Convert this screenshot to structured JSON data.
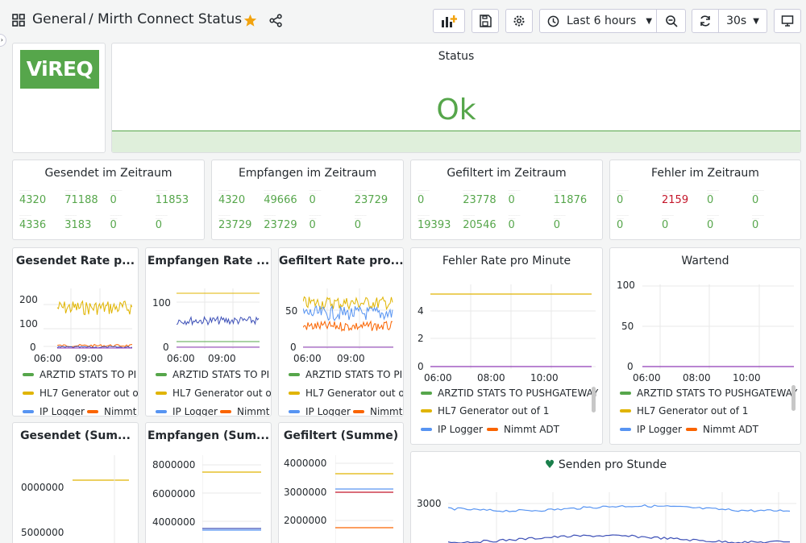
{
  "header": {
    "folder": "General",
    "separator": "/",
    "title": "Mirth Connect Status",
    "timerange": "Last 6 hours",
    "refresh": "30s"
  },
  "logo": {
    "text": "ViREQ"
  },
  "status_panel": {
    "title": "Status",
    "value": "Ok"
  },
  "stat_panels": [
    {
      "title": "Gesendet im Zeitraum",
      "cells": [
        "4320",
        "71188",
        "0",
        "11853",
        "4336",
        "3183",
        "0",
        "0"
      ],
      "red": []
    },
    {
      "title": "Empfangen im Zeitraum",
      "cells": [
        "4320",
        "49666",
        "0",
        "23729",
        "23729",
        "23729",
        "0",
        "0"
      ],
      "red": []
    },
    {
      "title": "Gefiltert im Zeitraum",
      "cells": [
        "0",
        "23778",
        "0",
        "11876",
        "19393",
        "20546",
        "0",
        "0"
      ],
      "red": []
    },
    {
      "title": "Fehler im Zeitraum",
      "cells": [
        "0",
        "2159",
        "0",
        "0",
        "0",
        "0",
        "0",
        "0"
      ],
      "red": [
        1
      ]
    }
  ],
  "rate_panels": {
    "gesendet": {
      "title": "Gesendet Rate p...",
      "yticks": [
        "200",
        "100",
        "0"
      ],
      "xticks": [
        "06:00",
        "09:00"
      ]
    },
    "empfangen": {
      "title": "Empfangen Rate ...",
      "yticks": [
        "100",
        "0"
      ],
      "xticks": [
        "06:00",
        "09:00"
      ]
    },
    "gefiltert": {
      "title": "Gefiltert Rate pro...",
      "yticks": [
        "50",
        "0"
      ],
      "xticks": [
        "06:00",
        "09:00"
      ]
    },
    "fehler": {
      "title": "Fehler Rate pro Minute",
      "yticks": [
        "4",
        "2",
        "0"
      ],
      "xticks": [
        "06:00",
        "08:00",
        "10:00"
      ]
    },
    "wartend": {
      "title": "Wartend",
      "yticks": [
        "100",
        "50",
        "0"
      ],
      "xticks": [
        "06:00",
        "08:00",
        "10:00"
      ]
    }
  },
  "legend_short": [
    "ARZTID STATS TO PI",
    "HL7 Generator out of",
    "IP Logger",
    "Nimmt"
  ],
  "legend_long": [
    "ARZTID STATS TO PUSHGATEWAY",
    "HL7 Generator out of 1",
    "IP Logger",
    "Nimmt ADT"
  ],
  "sum_panels": {
    "gesendet": {
      "title": "Gesendet (Sum...",
      "yticks": [
        "0000000",
        "5000000"
      ]
    },
    "empfangen": {
      "title": "Empfangen (Sum...",
      "yticks": [
        "8000000",
        "6000000",
        "4000000"
      ]
    },
    "gefiltert": {
      "title": "Gefiltert (Summe)",
      "yticks": [
        "4000000",
        "3000000",
        "2000000"
      ]
    },
    "senden": {
      "title": "Senden pro Stunde",
      "yticks": [
        "3000"
      ]
    }
  },
  "colors": {
    "green": "#56a64b",
    "yellow": "#e0b400",
    "blue": "#5794f2",
    "orange": "#fa6400",
    "purple": "#8f3bb8",
    "indigo": "#3d50b7",
    "red": "#c4162a",
    "star": "#f2a30f"
  }
}
